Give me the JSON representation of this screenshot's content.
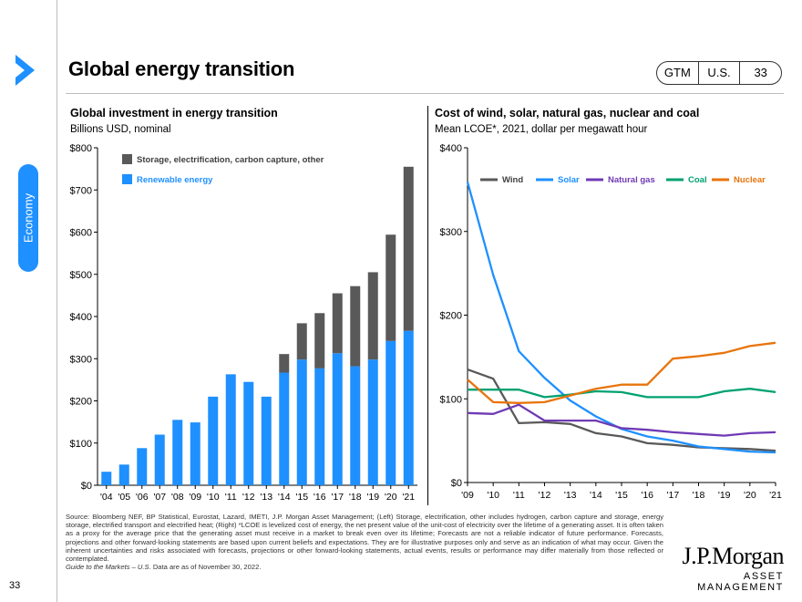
{
  "page": {
    "title": "Global energy transition",
    "tags": [
      "GTM",
      "U.S.",
      "33"
    ],
    "side_tab": "Economy",
    "page_number": "33",
    "source": "Source: Bloomberg NEF, BP Statistical, Eurostat, Lazard, IMETI, J.P. Morgan Asset Management; (Left) Storage, electrification, other includes hydrogen, carbon capture and storage, energy storage, electrified transport and electrified heat; (Right) *LCOE is levelized cost of energy, the net present value of the unit-cost of electricity over the lifetime of a generating asset. It is often taken as a proxy for the average price that the generating asset must receive in a market to break even over its lifetime; Forecasts are not a reliable indicator of future performance. Forecasts, projections and other forward-looking statements are based upon current beliefs and expectations. They are for illustrative purposes only and serve as an indication of what may occur. Given the inherent uncertainties and risks associated with forecasts, projections or other forward-looking statements, actual events, results or performance may differ materially from those reflected or contemplated.",
    "guide_italic": "Guide to the Markets – U.S.",
    "guide_rest": " Data are as of November 30, 2022.",
    "logo_name": "J.P.Morgan",
    "logo_sub": "ASSET MANAGEMENT",
    "colors": {
      "accent": "#1e90ff",
      "gray_bar": "#595959",
      "blue_bar": "#1e90ff"
    }
  },
  "chart_data": [
    {
      "type": "bar",
      "stacked": true,
      "title": "Global investment in energy transition",
      "subtitle": "Billions USD, nominal",
      "categories": [
        "'04",
        "'05",
        "'06",
        "'07",
        "'08",
        "'09",
        "'10",
        "'11",
        "'12",
        "'13",
        "'14",
        "'15",
        "'16",
        "'17",
        "'18",
        "'19",
        "'20",
        "'21"
      ],
      "series": [
        {
          "name": "Renewable energy",
          "color": "#1e90ff",
          "values": [
            32,
            49,
            88,
            120,
            155,
            149,
            210,
            263,
            245,
            210,
            267,
            298,
            277,
            313,
            282,
            298,
            342,
            366
          ]
        },
        {
          "name": "Storage, electrification, carbon capture, other",
          "color": "#595959",
          "values": [
            0,
            0,
            0,
            0,
            0,
            0,
            0,
            0,
            0,
            0,
            44,
            86,
            131,
            142,
            190,
            207,
            252,
            389
          ]
        }
      ],
      "legend_order": [
        "Storage, electrification, carbon capture, other",
        "Renewable energy"
      ],
      "yticks": [
        "$0",
        "$100",
        "$200",
        "$300",
        "$400",
        "$500",
        "$600",
        "$700",
        "$800"
      ],
      "ylim": [
        0,
        800
      ]
    },
    {
      "type": "line",
      "title": "Cost of wind, solar, natural gas, nuclear and coal",
      "subtitle": "Mean LCOE*, 2021, dollar per megawatt hour",
      "x": [
        "'09",
        "'10",
        "'11",
        "'12",
        "'13",
        "'14",
        "'15",
        "'16",
        "'17",
        "'18",
        "'19",
        "'20",
        "'21"
      ],
      "series": [
        {
          "name": "Wind",
          "color": "#595959",
          "values": [
            135,
            124,
            71,
            72,
            70,
            59,
            55,
            47,
            45,
            42,
            41,
            40,
            38
          ]
        },
        {
          "name": "Solar",
          "color": "#1e90ff",
          "values": [
            359,
            248,
            157,
            125,
            98,
            79,
            64,
            55,
            50,
            43,
            40,
            37,
            36
          ]
        },
        {
          "name": "Natural gas",
          "color": "#6f3ab5",
          "values": [
            83,
            82,
            93,
            74,
            74,
            74,
            65,
            63,
            60,
            58,
            56,
            59,
            60
          ]
        },
        {
          "name": "Coal",
          "color": "#00a170",
          "values": [
            111,
            111,
            111,
            102,
            105,
            109,
            108,
            102,
            102,
            102,
            109,
            112,
            108
          ]
        },
        {
          "name": "Nuclear",
          "color": "#e8740c",
          "values": [
            123,
            96,
            95,
            96,
            104,
            112,
            117,
            117,
            148,
            151,
            155,
            163,
            167
          ]
        }
      ],
      "yticks": [
        "$0",
        "$100",
        "$200",
        "$300",
        "$400"
      ],
      "ylim": [
        0,
        400
      ]
    }
  ]
}
